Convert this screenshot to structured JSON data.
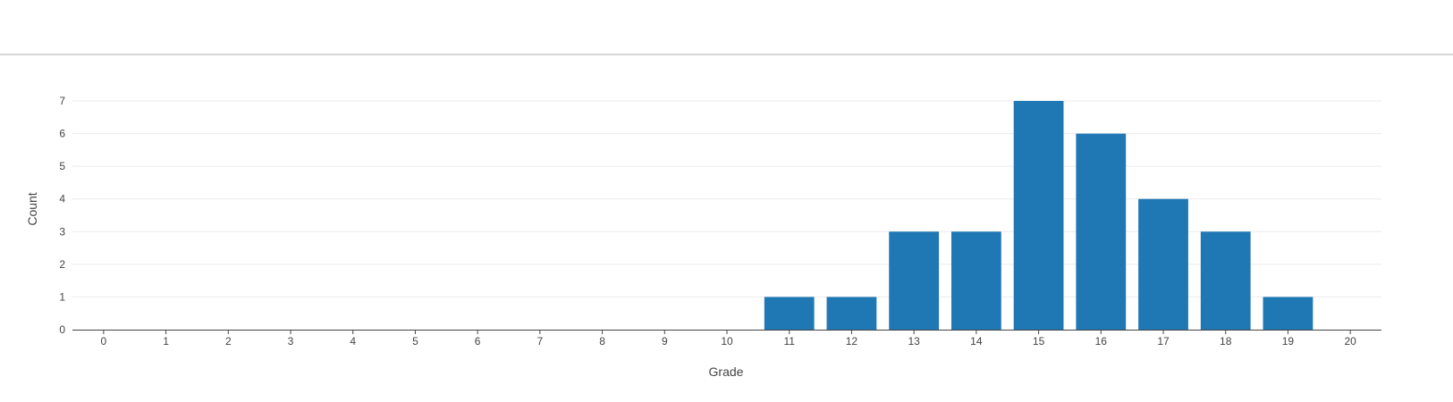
{
  "chart_data": {
    "type": "bar",
    "xlabel": "Grade",
    "ylabel": "Count",
    "categories": [
      "0",
      "1",
      "2",
      "3",
      "4",
      "5",
      "6",
      "7",
      "8",
      "9",
      "10",
      "11",
      "12",
      "13",
      "14",
      "15",
      "16",
      "17",
      "18",
      "19",
      "20"
    ],
    "values": [
      0,
      0,
      0,
      0,
      0,
      0,
      0,
      0,
      0,
      0,
      0,
      1,
      1,
      3,
      3,
      7,
      6,
      4,
      3,
      1,
      0
    ],
    "ylim": [
      0,
      7
    ],
    "yticks": [
      0,
      1,
      2,
      3,
      4,
      5,
      6,
      7
    ],
    "grid": true,
    "bar_color": "#1f77b4"
  }
}
